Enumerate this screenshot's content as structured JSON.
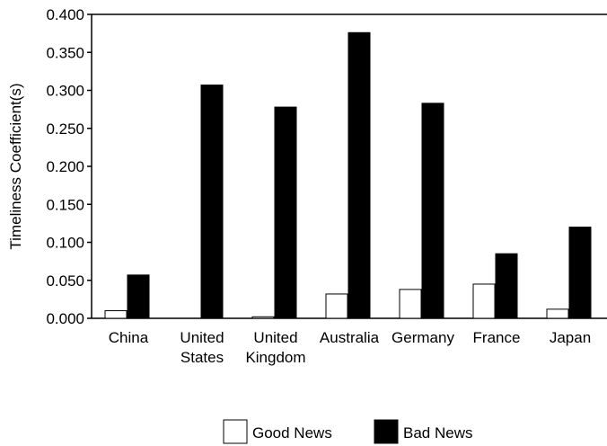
{
  "chart_data": {
    "type": "bar",
    "title": "",
    "xlabel": "",
    "ylabel": "Timeliness Coefficient(s)",
    "ylim": [
      0,
      0.4
    ],
    "yticks": [
      "0.000",
      "0.050",
      "0.100",
      "0.150",
      "0.200",
      "0.250",
      "0.300",
      "0.350",
      "0.400"
    ],
    "grid": false,
    "legend_position": "bottom",
    "categories": [
      [
        "China"
      ],
      [
        "United",
        "States"
      ],
      [
        "United",
        "Kingdom"
      ],
      [
        "Australia"
      ],
      [
        "Germany"
      ],
      [
        "France"
      ],
      [
        "Japan"
      ]
    ],
    "series": [
      {
        "name": "Good News",
        "color": "#ffffff",
        "values": [
          0.01,
          0.0,
          0.002,
          0.032,
          0.038,
          0.045,
          0.012
        ]
      },
      {
        "name": "Bad News",
        "color": "#000000",
        "values": [
          0.057,
          0.307,
          0.278,
          0.376,
          0.283,
          0.085,
          0.12
        ]
      }
    ]
  }
}
